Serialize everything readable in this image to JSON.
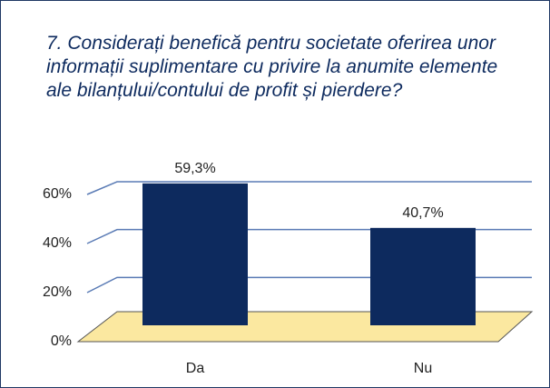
{
  "chart_data": {
    "type": "bar3d",
    "title": "7. Considerați benefică pentru societate oferirea unor informații suplimentare cu privire la anumite elemente ale bilanțului/contului de profit și pierdere?",
    "categories": [
      "Da",
      "Nu"
    ],
    "values": [
      59.3,
      40.7
    ],
    "value_labels": [
      "59,3%",
      "40,7%"
    ],
    "color": "#0d2a5e",
    "floor_color": "#fbe8a0",
    "ylim": [
      0,
      60
    ],
    "yticks": [
      {
        "value": 0,
        "label": "0%"
      },
      {
        "value": 20,
        "label": "20%"
      },
      {
        "value": 40,
        "label": "40%"
      },
      {
        "value": 60,
        "label": "60%"
      }
    ],
    "grid": true
  }
}
